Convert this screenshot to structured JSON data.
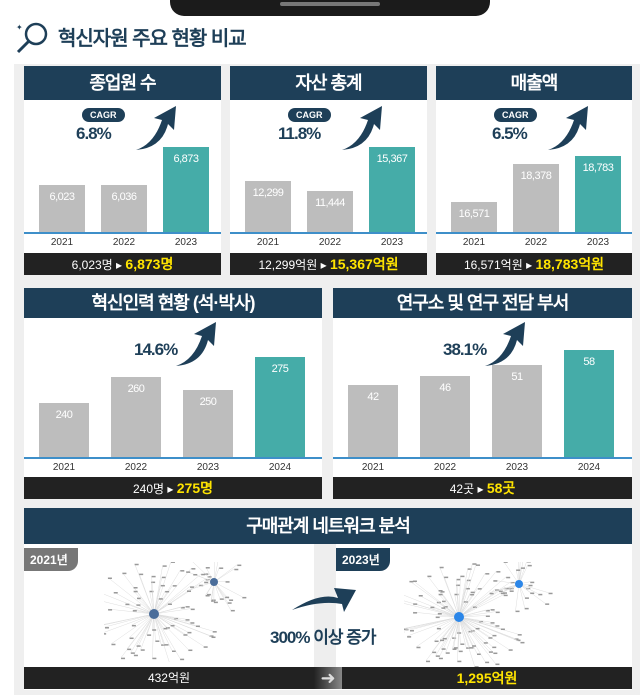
{
  "title": "혁신자원 주요 현황 비교",
  "colors": {
    "header": "#1e3f58",
    "bar": "#bdbdbd",
    "highlight": "#45aca8",
    "summary_bg": "#222222",
    "summary_highlight": "#ffe400"
  },
  "chart_data": [
    {
      "type": "bar",
      "title": "종업원 수",
      "categories": [
        "2021",
        "2022",
        "2023"
      ],
      "values": [
        6023,
        6036,
        6873
      ],
      "value_labels": [
        "6,023",
        "6,036",
        "6,873"
      ],
      "ylim": [
        4980,
        7800
      ],
      "badge": "CAGR",
      "growth": "6.8%",
      "summary_from": "6,023명",
      "summary_to": "6,873명"
    },
    {
      "type": "bar",
      "title": "자산 총계",
      "categories": [
        "2021",
        "2022",
        "2023"
      ],
      "values": [
        12299,
        11444,
        15367
      ],
      "value_labels": [
        "12,299",
        "11,444",
        "15,367"
      ],
      "ylim": [
        7810,
        19000
      ],
      "badge": "CAGR",
      "growth": "11.8%",
      "summary_from": "12,299억원",
      "summary_to": "15,367억원"
    },
    {
      "type": "bar",
      "title": "매출액",
      "categories": [
        "2021",
        "2022",
        "2023"
      ],
      "values": [
        16571,
        18378,
        18783
      ],
      "value_labels": [
        "16,571",
        "18,378",
        "18,783"
      ],
      "ylim": [
        15100,
        21200
      ],
      "badge": "CAGR",
      "growth": "6.5%",
      "summary_from": "16,571억원",
      "summary_to": "18,783억원"
    },
    {
      "type": "bar",
      "title": "혁신인력 현황 (석·박사)",
      "categories": [
        "2021",
        "2022",
        "2023",
        "2024"
      ],
      "values": [
        240,
        260,
        250,
        275
      ],
      "value_labels": [
        "240",
        "260",
        "250",
        "275"
      ],
      "ylim": [
        199,
        300
      ],
      "growth": "14.6%",
      "summary_from": "240명",
      "summary_to": "275명"
    },
    {
      "type": "bar",
      "title": "연구소 및 연구 전담 부서",
      "categories": [
        "2021",
        "2022",
        "2023",
        "2024"
      ],
      "values": [
        42,
        46,
        51,
        58
      ],
      "value_labels": [
        "42",
        "46",
        "51",
        "58"
      ],
      "ylim": [
        9,
        70
      ],
      "growth": "38.1%",
      "summary_from": "42곳",
      "summary_to": "58곳"
    }
  ],
  "network": {
    "title": "구매관계 네트워크 분석",
    "left_year": "2021년",
    "right_year": "2023년",
    "change": "300% 이상 증가",
    "left_value": "432억원",
    "right_value": "1,295억원"
  }
}
